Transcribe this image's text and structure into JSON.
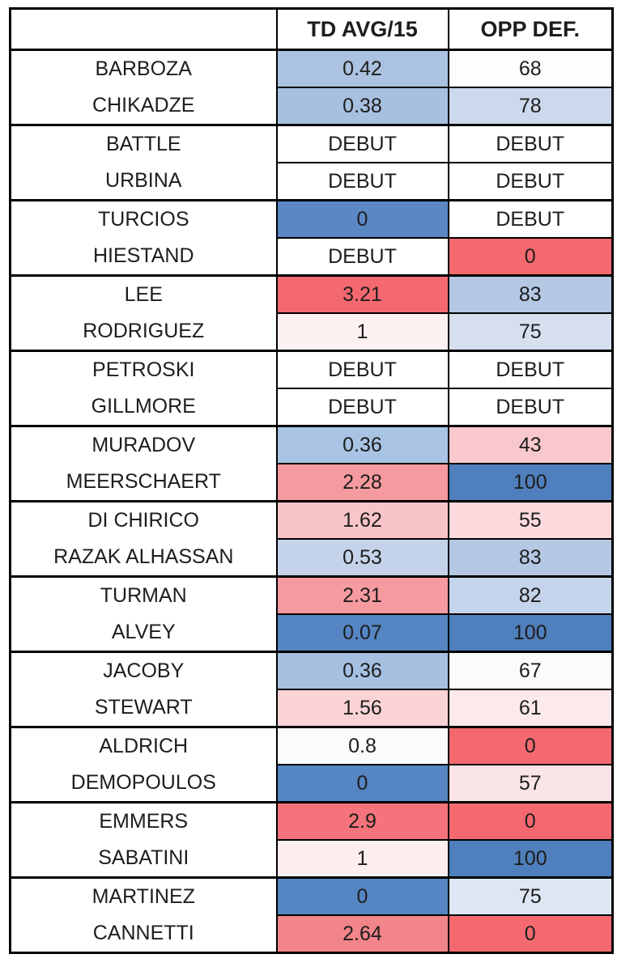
{
  "chart_data": {
    "type": "table",
    "title": "",
    "columns": [
      "",
      "TD AVG/15",
      "OPP DEF."
    ],
    "legend_note_colors": {
      "high_red": "#f4696f",
      "mid_pink": "#f59a9f",
      "light_pink": "#f8c7cc",
      "near_white": "#fdfdfe",
      "light_blue": "#c4d3e9",
      "mid_blue": "#a9c2e0",
      "strong_blue": "#5585c2",
      "debut_bg": "#ffffff",
      "border": "#000000",
      "text": "#1d1d1d"
    },
    "pairs": [
      {
        "fighters": [
          {
            "name": "BARBOZA",
            "td": {
              "value": "0.42",
              "bg": "#abc2e0"
            },
            "opp": {
              "value": "68",
              "bg": "#fcfdfe"
            }
          },
          {
            "name": "CHIKADZE",
            "td": {
              "value": "0.38",
              "bg": "#a8c0df"
            },
            "opp": {
              "value": "78",
              "bg": "#ccd9ec"
            }
          }
        ]
      },
      {
        "fighters": [
          {
            "name": "BATTLE",
            "td": {
              "value": "DEBUT",
              "bg": "#ffffff"
            },
            "opp": {
              "value": "DEBUT",
              "bg": "#ffffff"
            }
          },
          {
            "name": "URBINA",
            "td": {
              "value": "DEBUT",
              "bg": "#ffffff"
            },
            "opp": {
              "value": "DEBUT",
              "bg": "#ffffff"
            }
          }
        ]
      },
      {
        "fighters": [
          {
            "name": "TURCIOS",
            "td": {
              "value": "0",
              "bg": "#5b88c4"
            },
            "opp": {
              "value": "DEBUT",
              "bg": "#ffffff"
            }
          },
          {
            "name": "HIESTAND",
            "td": {
              "value": "DEBUT",
              "bg": "#ffffff"
            },
            "opp": {
              "value": "0",
              "bg": "#f4696f"
            }
          }
        ]
      },
      {
        "fighters": [
          {
            "name": "LEE",
            "td": {
              "value": "3.21",
              "bg": "#f4696f"
            },
            "opp": {
              "value": "83",
              "bg": "#b4c7e3"
            }
          },
          {
            "name": "RODRIGUEZ",
            "td": {
              "value": "1",
              "bg": "#fdf0f1"
            },
            "opp": {
              "value": "75",
              "bg": "#d6dfee"
            }
          }
        ]
      },
      {
        "fighters": [
          {
            "name": "PETROSKI",
            "td": {
              "value": "DEBUT",
              "bg": "#ffffff"
            },
            "opp": {
              "value": "DEBUT",
              "bg": "#ffffff"
            }
          },
          {
            "name": "GILLMORE",
            "td": {
              "value": "DEBUT",
              "bg": "#ffffff"
            },
            "opp": {
              "value": "DEBUT",
              "bg": "#ffffff"
            }
          }
        ]
      },
      {
        "fighters": [
          {
            "name": "MURADOV",
            "td": {
              "value": "0.36",
              "bg": "#a8c3e3"
            },
            "opp": {
              "value": "43",
              "bg": "#f8c8cd"
            }
          },
          {
            "name": "MEERSCHAERT",
            "td": {
              "value": "2.28",
              "bg": "#f59a9f"
            },
            "opp": {
              "value": "100",
              "bg": "#4f7fbc"
            }
          }
        ]
      },
      {
        "fighters": [
          {
            "name": "DI CHIRICO",
            "td": {
              "value": "1.62",
              "bg": "#f9c4c8"
            },
            "opp": {
              "value": "55",
              "bg": "#fbd9dc"
            }
          },
          {
            "name": "RAZAK ALHASSAN",
            "td": {
              "value": "0.53",
              "bg": "#c4d3e9"
            },
            "opp": {
              "value": "83",
              "bg": "#b4c7e3"
            }
          }
        ]
      },
      {
        "fighters": [
          {
            "name": "TURMAN",
            "td": {
              "value": "2.31",
              "bg": "#f59ba0"
            },
            "opp": {
              "value": "82",
              "bg": "#c4d4ea"
            }
          },
          {
            "name": "ALVEY",
            "td": {
              "value": "0.07",
              "bg": "#5585c2"
            },
            "opp": {
              "value": "100",
              "bg": "#4f7fbc"
            }
          }
        ]
      },
      {
        "fighters": [
          {
            "name": "JACOBY",
            "td": {
              "value": "0.36",
              "bg": "#a5c0e1"
            },
            "opp": {
              "value": "67",
              "bg": "#fafbfd"
            }
          },
          {
            "name": "STEWART",
            "td": {
              "value": "1.56",
              "bg": "#fad3d6"
            },
            "opp": {
              "value": "61",
              "bg": "#fce9ea"
            }
          }
        ]
      },
      {
        "fighters": [
          {
            "name": "ALDRICH",
            "td": {
              "value": "0.8",
              "bg": "#fafbfd"
            },
            "opp": {
              "value": "0",
              "bg": "#f4696f"
            }
          },
          {
            "name": "DEMOPOULOS",
            "td": {
              "value": "0",
              "bg": "#5585c2"
            },
            "opp": {
              "value": "57",
              "bg": "#fbe4e6"
            }
          }
        ]
      },
      {
        "fighters": [
          {
            "name": "EMMERS",
            "td": {
              "value": "2.9",
              "bg": "#f5737a"
            },
            "opp": {
              "value": "0",
              "bg": "#f4696f"
            }
          },
          {
            "name": "SABATINI",
            "td": {
              "value": "1",
              "bg": "#fcedee"
            },
            "opp": {
              "value": "100",
              "bg": "#4f7fbc"
            }
          }
        ]
      },
      {
        "fighters": [
          {
            "name": "MARTINEZ",
            "td": {
              "value": "0",
              "bg": "#5585c2"
            },
            "opp": {
              "value": "75",
              "bg": "#dde6f2"
            }
          },
          {
            "name": "CANNETTI",
            "td": {
              "value": "2.64",
              "bg": "#f2858a"
            },
            "opp": {
              "value": "0",
              "bg": "#f4696f"
            }
          }
        ]
      }
    ]
  }
}
